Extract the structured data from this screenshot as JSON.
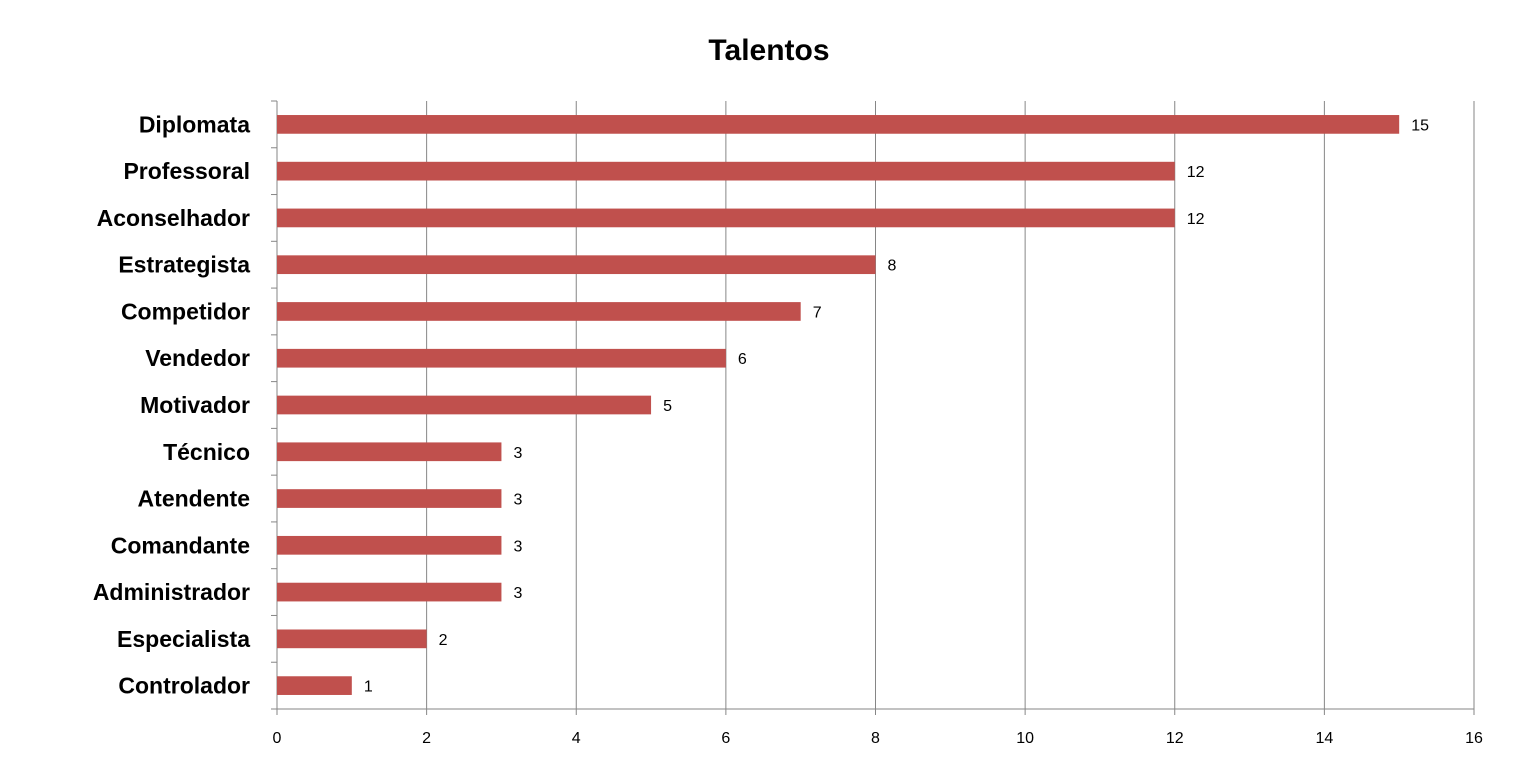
{
  "chart_data": {
    "type": "bar",
    "orientation": "horizontal",
    "title": "Talentos",
    "xlabel": "",
    "ylabel": "",
    "categories": [
      "Diplomata",
      "Professoral",
      "Aconselhador",
      "Estrategista",
      "Competidor",
      "Vendedor",
      "Motivador",
      "Técnico",
      "Atendente",
      "Comandante",
      "Administrador",
      "Especialista",
      "Controlador"
    ],
    "values": [
      15,
      12,
      12,
      8,
      7,
      6,
      5,
      3,
      3,
      3,
      3,
      2,
      1
    ],
    "xlim": [
      0,
      16
    ],
    "xticks": [
      0,
      2,
      4,
      6,
      8,
      10,
      12,
      14,
      16
    ],
    "grid": "vertical",
    "legend": "none",
    "data_labels": true,
    "bar_color": "#c0504d"
  }
}
